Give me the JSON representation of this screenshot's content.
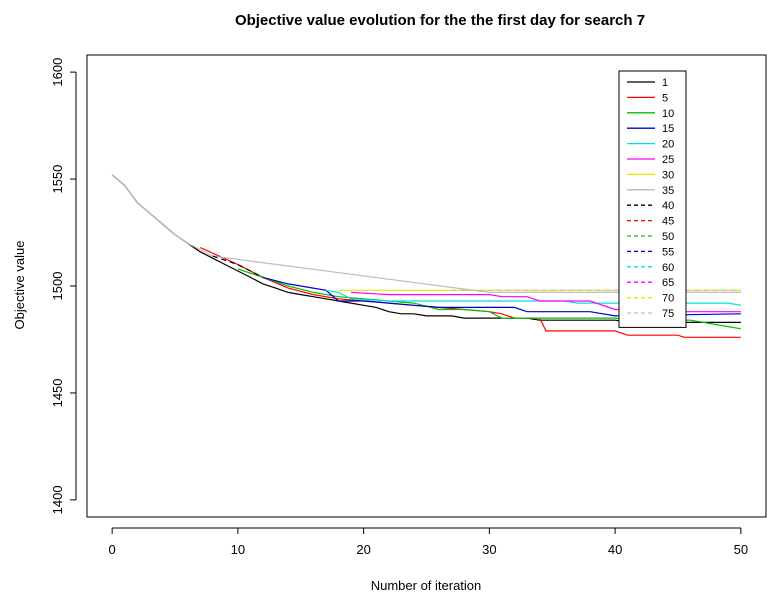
{
  "chart_data": {
    "type": "line",
    "title": "Objective value evolution for the the first day for search 7",
    "xlabel": "Number of iteration",
    "ylabel": "Objective value",
    "xlim": [
      -2,
      52
    ],
    "ylim": [
      1392,
      1608
    ],
    "xticks": [
      0,
      10,
      20,
      30,
      40,
      50
    ],
    "yticks": [
      1400,
      1450,
      1500,
      1550,
      1600
    ],
    "legend_position": "top-right",
    "series": [
      {
        "name": "1",
        "color": "#000000",
        "dash": "solid",
        "points": [
          [
            0,
            1552
          ],
          [
            1,
            1547
          ],
          [
            2,
            1539
          ],
          [
            3,
            1534
          ],
          [
            4,
            1529
          ],
          [
            5,
            1524
          ],
          [
            6,
            1520
          ],
          [
            7,
            1516
          ],
          [
            8,
            1513
          ],
          [
            9,
            1510
          ],
          [
            10,
            1507
          ],
          [
            11,
            1504
          ],
          [
            12,
            1501
          ],
          [
            13,
            1499
          ],
          [
            14,
            1497
          ],
          [
            15,
            1496
          ],
          [
            16,
            1495
          ],
          [
            17,
            1494
          ],
          [
            18,
            1493
          ],
          [
            19,
            1492
          ],
          [
            20,
            1491
          ],
          [
            21,
            1490
          ],
          [
            22,
            1488
          ],
          [
            23,
            1487
          ],
          [
            24,
            1487
          ],
          [
            25,
            1486
          ],
          [
            26,
            1486
          ],
          [
            27,
            1486
          ],
          [
            28,
            1485
          ],
          [
            29,
            1485
          ],
          [
            30,
            1485
          ],
          [
            31,
            1485
          ],
          [
            32,
            1485
          ],
          [
            33,
            1485
          ],
          [
            34,
            1484
          ],
          [
            35,
            1484
          ],
          [
            36,
            1484
          ],
          [
            40,
            1484
          ],
          [
            41,
            1483
          ],
          [
            50,
            1483
          ]
        ]
      },
      {
        "name": "5",
        "color": "#ff0000",
        "dash": "solid",
        "points": [
          [
            7,
            1518
          ],
          [
            10,
            1510
          ],
          [
            12,
            1504
          ],
          [
            14,
            1499
          ],
          [
            16,
            1496
          ],
          [
            18,
            1494
          ],
          [
            20,
            1493
          ],
          [
            22,
            1492
          ],
          [
            24,
            1491
          ],
          [
            26,
            1490
          ],
          [
            28,
            1489
          ],
          [
            30,
            1488
          ],
          [
            31,
            1487
          ],
          [
            32,
            1485
          ],
          [
            34,
            1485
          ],
          [
            34.5,
            1479
          ],
          [
            40,
            1479
          ],
          [
            41,
            1477
          ],
          [
            45,
            1477
          ],
          [
            45.5,
            1476
          ],
          [
            50,
            1476
          ]
        ]
      },
      {
        "name": "10",
        "color": "#00c000",
        "dash": "solid",
        "points": [
          [
            10,
            1508
          ],
          [
            12,
            1504
          ],
          [
            14,
            1500
          ],
          [
            16,
            1497
          ],
          [
            18,
            1495
          ],
          [
            20,
            1494
          ],
          [
            22,
            1493
          ],
          [
            24,
            1492
          ],
          [
            26,
            1489
          ],
          [
            28,
            1489
          ],
          [
            30,
            1488
          ],
          [
            31,
            1485
          ],
          [
            40,
            1485
          ],
          [
            41,
            1484
          ],
          [
            46,
            1484
          ],
          [
            48,
            1482
          ],
          [
            50,
            1480
          ]
        ]
      },
      {
        "name": "15",
        "color": "#0000cc",
        "dash": "solid",
        "points": [
          [
            12,
            1504
          ],
          [
            14,
            1501
          ],
          [
            16,
            1499
          ],
          [
            17,
            1498
          ],
          [
            18,
            1493
          ],
          [
            20,
            1493
          ],
          [
            22,
            1492
          ],
          [
            24,
            1491
          ],
          [
            26,
            1490
          ],
          [
            30,
            1490
          ],
          [
            32,
            1490
          ],
          [
            33,
            1488
          ],
          [
            37,
            1488
          ],
          [
            38,
            1488
          ],
          [
            40,
            1486
          ],
          [
            50,
            1487
          ]
        ]
      },
      {
        "name": "20",
        "color": "#00e0e0",
        "dash": "solid",
        "points": [
          [
            17,
            1498
          ],
          [
            18,
            1497
          ],
          [
            19,
            1494
          ],
          [
            22,
            1493
          ],
          [
            26,
            1493
          ],
          [
            36,
            1493
          ],
          [
            37,
            1492
          ],
          [
            49,
            1492
          ],
          [
            50,
            1491
          ]
        ]
      },
      {
        "name": "25",
        "color": "#ff00ff",
        "dash": "solid",
        "points": [
          [
            19,
            1497
          ],
          [
            22,
            1496
          ],
          [
            30,
            1496
          ],
          [
            31,
            1495
          ],
          [
            33,
            1495
          ],
          [
            34,
            1493
          ],
          [
            38,
            1493
          ],
          [
            40,
            1489
          ],
          [
            45,
            1489
          ],
          [
            45.5,
            1488
          ],
          [
            50,
            1488
          ]
        ]
      },
      {
        "name": "30",
        "color": "#e6e600",
        "dash": "solid",
        "points": [
          [
            18,
            1498
          ],
          [
            50,
            1498
          ]
        ]
      },
      {
        "name": "35",
        "color": "#bdbdbd",
        "dash": "solid",
        "points": [
          [
            0,
            1552
          ],
          [
            1,
            1547
          ],
          [
            2,
            1539
          ],
          [
            3,
            1534
          ],
          [
            4,
            1529
          ],
          [
            5,
            1524
          ],
          [
            6,
            1520
          ],
          [
            7,
            1517
          ],
          [
            8,
            1514
          ],
          [
            30,
            1497
          ],
          [
            40,
            1497
          ],
          [
            50,
            1497
          ]
        ]
      },
      {
        "name": "40",
        "color": "#000000",
        "dash": "dashed",
        "points": [
          [
            8,
            1514
          ],
          [
            10,
            1510
          ],
          [
            12,
            1504
          ]
        ]
      },
      {
        "name": "45",
        "color": "#ff0000",
        "dash": "dashed",
        "points": []
      },
      {
        "name": "50",
        "color": "#00c000",
        "dash": "dashed",
        "points": []
      },
      {
        "name": "55",
        "color": "#0000cc",
        "dash": "dashed",
        "points": []
      },
      {
        "name": "60",
        "color": "#00e0e0",
        "dash": "dashed",
        "points": []
      },
      {
        "name": "65",
        "color": "#ff00ff",
        "dash": "dashed",
        "points": []
      },
      {
        "name": "70",
        "color": "#e6e600",
        "dash": "dashed",
        "points": []
      },
      {
        "name": "75",
        "color": "#bdbdbd",
        "dash": "dashed",
        "points": [
          [
            27,
            1498
          ],
          [
            50,
            1498
          ]
        ]
      }
    ]
  }
}
